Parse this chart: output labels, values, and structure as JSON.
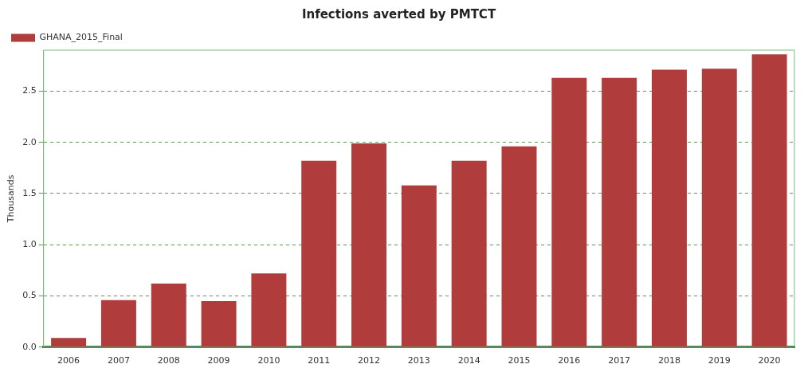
{
  "chart_data": {
    "type": "bar",
    "title": "Infections averted by PMTCT",
    "ylabel": "Thousands",
    "categories": [
      "2006",
      "2007",
      "2008",
      "2009",
      "2010",
      "2011",
      "2012",
      "2013",
      "2014",
      "2015",
      "2016",
      "2017",
      "2018",
      "2019",
      "2020"
    ],
    "series": [
      {
        "name": "GHANA_2015_Final",
        "color": "#b03c3c",
        "values": [
          0.09,
          0.46,
          0.62,
          0.45,
          0.72,
          1.82,
          1.99,
          1.58,
          1.82,
          1.96,
          2.63,
          2.63,
          2.71,
          2.72,
          2.86
        ]
      }
    ],
    "ylim": [
      0,
      2.9
    ],
    "yticks": [
      {
        "value": 0,
        "label": "0.0"
      },
      {
        "value": 0.5,
        "label": "0.5"
      },
      {
        "value": 1,
        "label": "1.0"
      },
      {
        "value": 1.5,
        "label": "1.5"
      },
      {
        "value": 2,
        "label": "2.0"
      },
      {
        "value": 2.5,
        "label": "2.5"
      }
    ],
    "grid": "y",
    "legend": "top left"
  }
}
